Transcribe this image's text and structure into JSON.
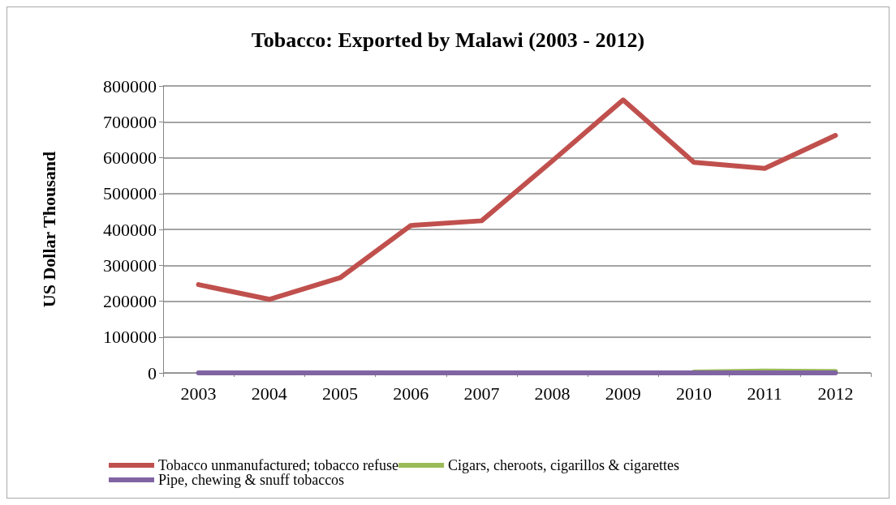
{
  "chart_data": {
    "type": "line",
    "title": "Tobacco: Exported by Malawi (2003 - 2012)",
    "ylabel": "US Dollar Thousand",
    "categories": [
      "2003",
      "2004",
      "2005",
      "2006",
      "2007",
      "2008",
      "2009",
      "2010",
      "2011",
      "2012"
    ],
    "series": [
      {
        "name": "Tobacco unmanufactured; tobacco refuse",
        "color": "#c0504d",
        "values": [
          246000,
          205000,
          265000,
          411000,
          424000,
          591000,
          761000,
          587000,
          570000,
          662000
        ]
      },
      {
        "name": "Cigars, cheroots, cigarillos & cigarettes",
        "color": "#9bbb59",
        "values": [
          null,
          null,
          null,
          null,
          null,
          null,
          null,
          2000,
          5000,
          4000
        ]
      },
      {
        "name": "Pipe, chewing & snuff tobaccos",
        "color": "#8064a2",
        "values": [
          0,
          0,
          0,
          0,
          0,
          0,
          0,
          0,
          0,
          0
        ]
      }
    ],
    "ylim": [
      0,
      800000
    ],
    "yticks": [
      0,
      100000,
      200000,
      300000,
      400000,
      500000,
      600000,
      700000,
      800000
    ],
    "grid": "y",
    "legend": "bottom",
    "marker": "none",
    "line_style": "solid"
  }
}
